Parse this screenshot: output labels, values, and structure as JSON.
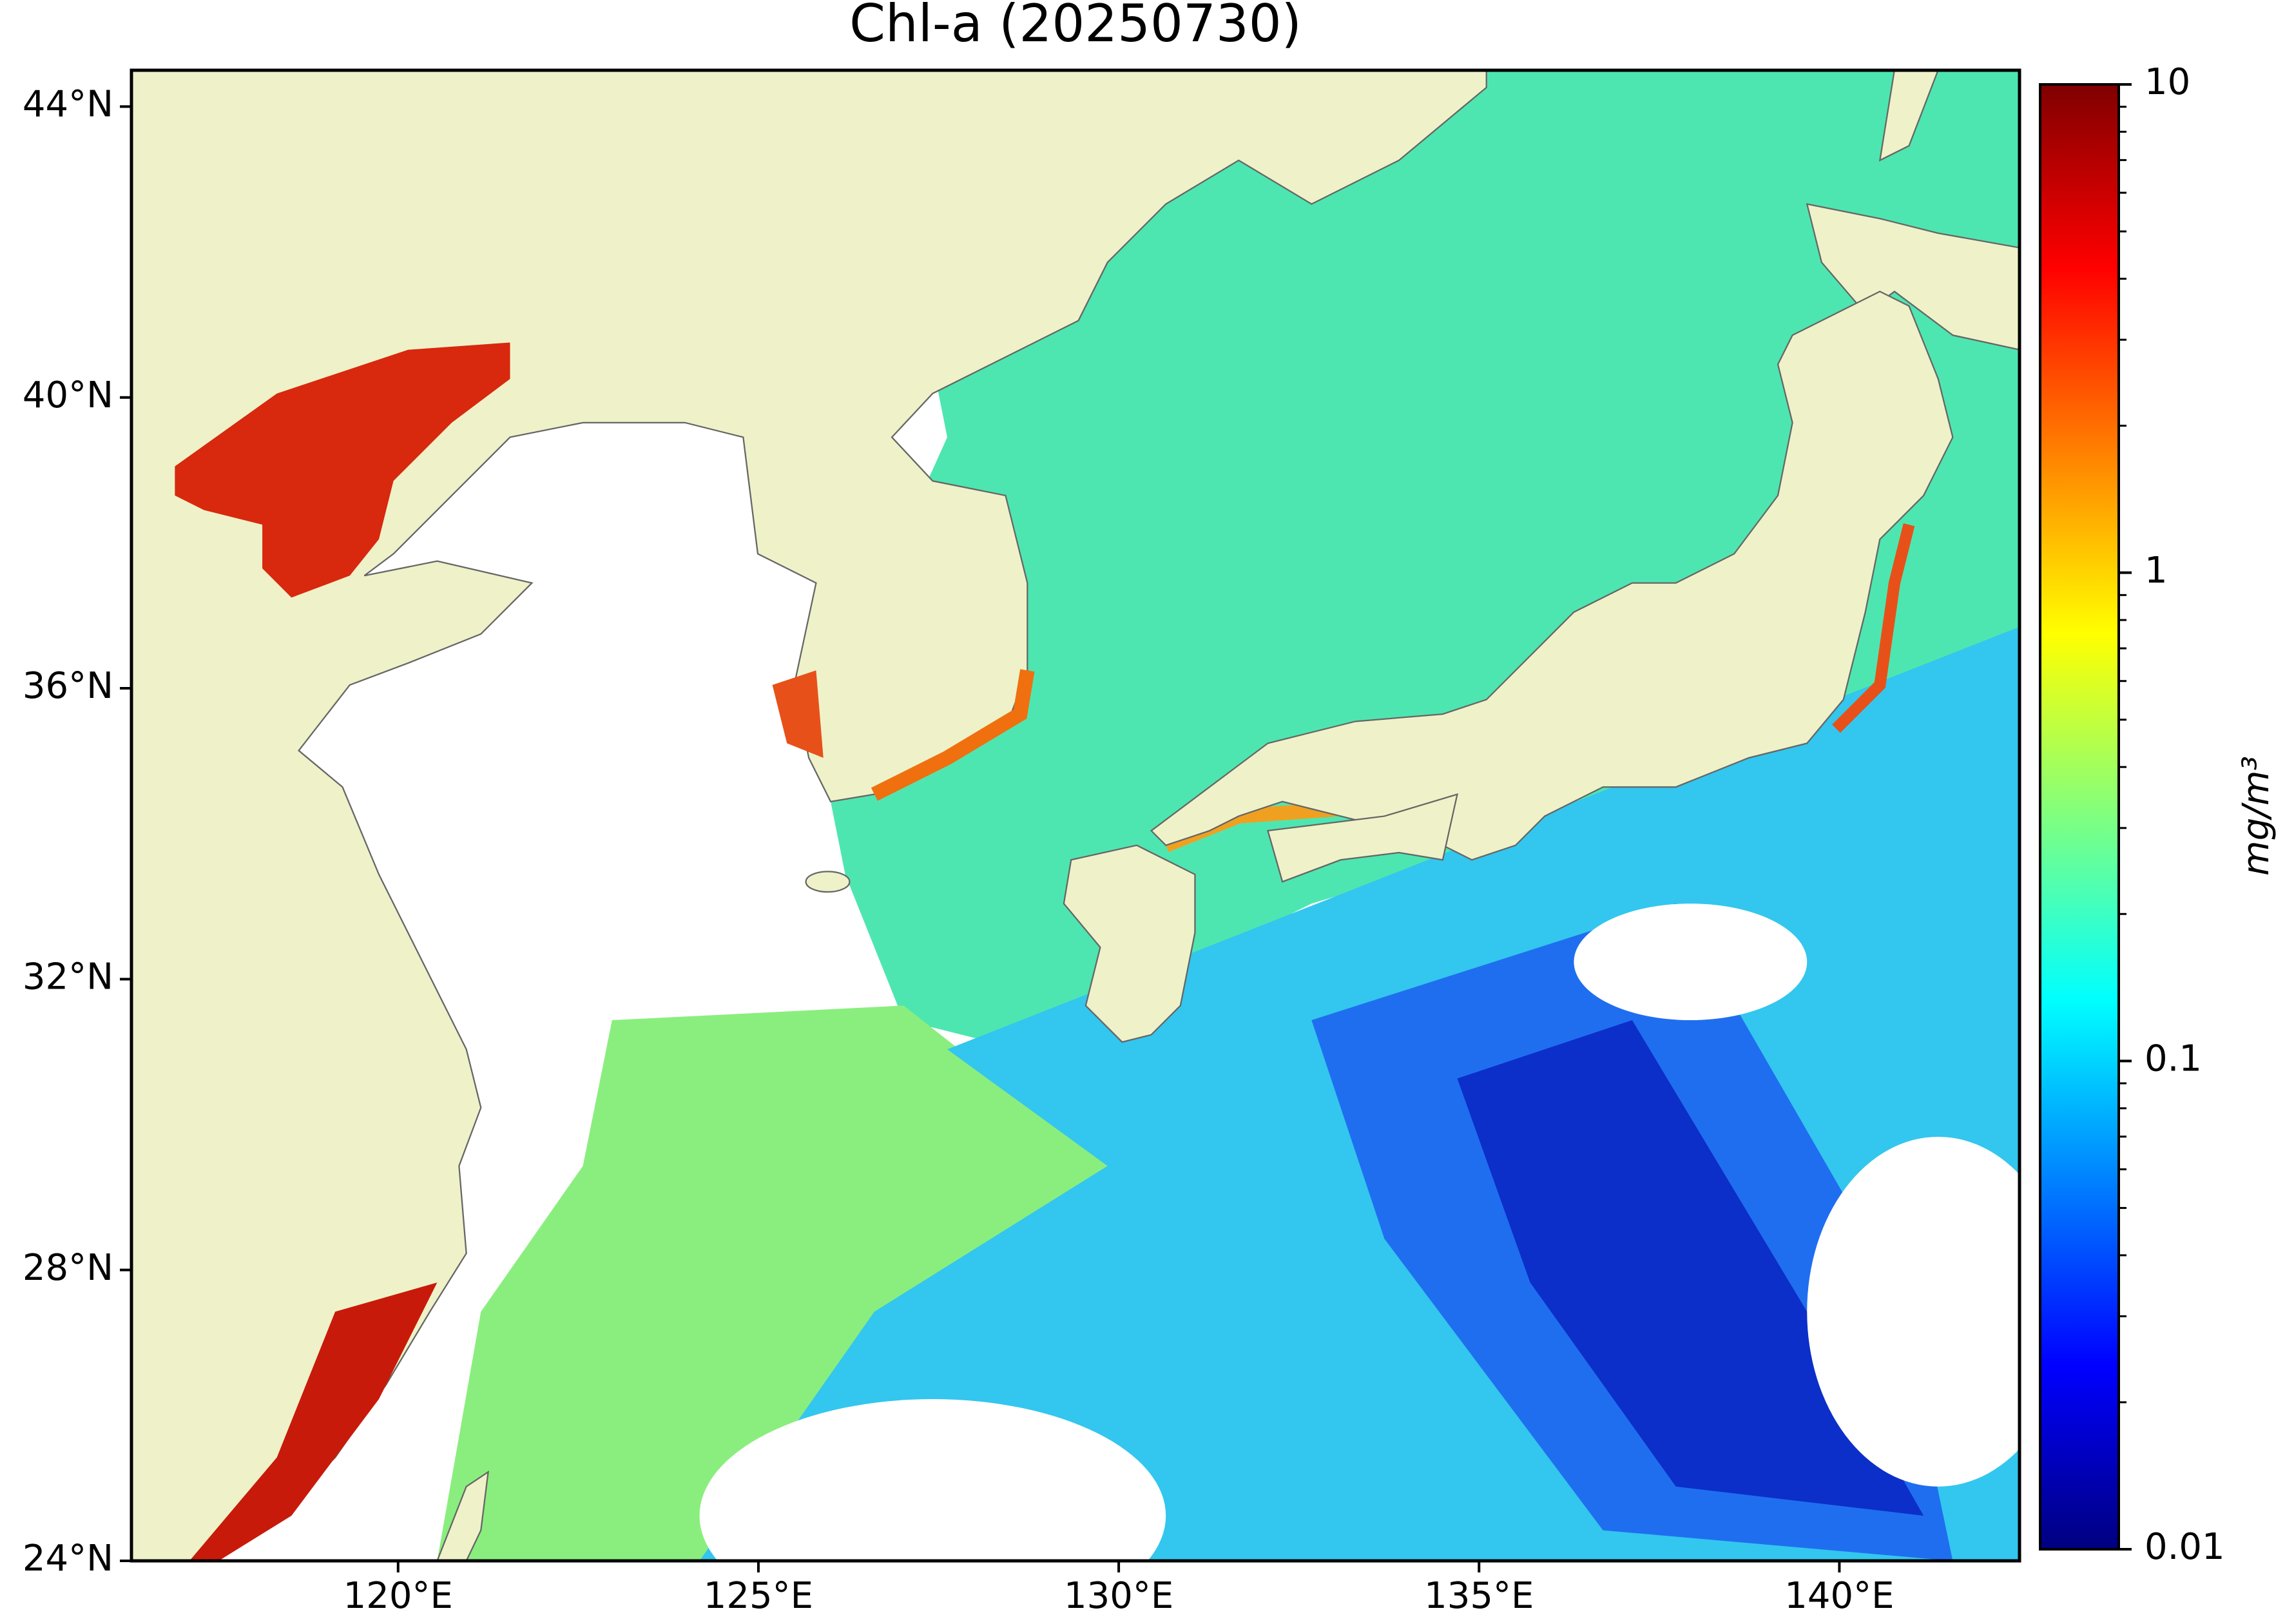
{
  "chart_data": {
    "type": "map",
    "title": "Chl-a (20250730)",
    "xlim": [
      116.3,
      142.5
    ],
    "ylim": [
      24,
      44.5
    ],
    "xticks": [
      {
        "value": 120,
        "label": "120°E"
      },
      {
        "value": 125,
        "label": "125°E"
      },
      {
        "value": 130,
        "label": "130°E"
      },
      {
        "value": 135,
        "label": "135°E"
      },
      {
        "value": 140,
        "label": "140°E"
      }
    ],
    "yticks": [
      {
        "value": 24,
        "label": "24°N"
      },
      {
        "value": 28,
        "label": "28°N"
      },
      {
        "value": 32,
        "label": "32°N"
      },
      {
        "value": 36,
        "label": "36°N"
      },
      {
        "value": 40,
        "label": "40°N"
      },
      {
        "value": 44,
        "label": "44°N"
      }
    ],
    "colorbar": {
      "label": "mg/m³",
      "scale": "log",
      "colormap": "jet",
      "lim": [
        0.01,
        10
      ],
      "ticks": [
        0.01,
        0.1,
        1,
        10
      ]
    }
  }
}
